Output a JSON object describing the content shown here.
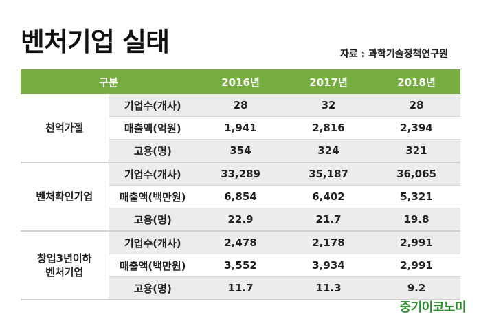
{
  "title": "벤처기업 실태",
  "source": "자료 : 과학기술정책연구원",
  "header": [
    "구분",
    "2016년",
    "2017년",
    "2018년"
  ],
  "groups": [
    {
      "name": "천억가젤",
      "rows": [
        {
          "metric": "기업수(개사)",
          "values": [
            "28",
            "32",
            "28"
          ]
        },
        {
          "metric": "매출액(억원)",
          "values": [
            "1,941",
            "2,816",
            "2,394"
          ]
        },
        {
          "metric": "고용(명)",
          "values": [
            "354",
            "324",
            "321"
          ]
        }
      ]
    },
    {
      "name": "벤처확인기업",
      "rows": [
        {
          "metric": "기업수(개사)",
          "values": [
            "33,289",
            "35,187",
            "36,065"
          ]
        },
        {
          "metric": "매출액(백만원)",
          "values": [
            "6,854",
            "6,402",
            "5,321"
          ]
        },
        {
          "metric": "고용(명)",
          "values": [
            "22.9",
            "21.7",
            "19.8"
          ]
        }
      ]
    },
    {
      "name_line1": "창업3년이하",
      "name_line2": "벤처기업",
      "rows": [
        {
          "metric": "기업수(개사)",
          "values": [
            "2,478",
            "2,178",
            "2,991"
          ]
        },
        {
          "metric": "매출액(백만원)",
          "values": [
            "3,552",
            "3,934",
            "2,991"
          ]
        },
        {
          "metric": "고용(명)",
          "values": [
            "11.7",
            "11.3",
            "9.2"
          ]
        }
      ]
    }
  ],
  "logo": "중기이코노미",
  "colors": {
    "header_green": "#76ad3f",
    "logo_green": "#2e8b2e",
    "row_gray": "#ececec"
  }
}
